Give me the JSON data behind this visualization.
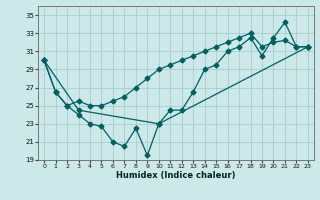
{
  "xlabel": "Humidex (Indice chaleur)",
  "bg_color": "#cce8e8",
  "grid_color": "#a8cccc",
  "line_color": "#006060",
  "xlim": [
    -0.5,
    23.5
  ],
  "ylim": [
    19,
    36
  ],
  "yticks": [
    19,
    21,
    23,
    25,
    27,
    29,
    31,
    33,
    35
  ],
  "xticks": [
    0,
    1,
    2,
    3,
    4,
    5,
    6,
    7,
    8,
    9,
    10,
    11,
    12,
    13,
    14,
    15,
    16,
    17,
    18,
    19,
    20,
    21,
    22,
    23
  ],
  "line1_x": [
    0,
    1,
    2,
    3,
    4,
    5,
    6,
    7,
    8,
    9,
    10,
    11,
    12,
    13,
    14,
    15,
    16,
    17,
    18,
    19,
    20,
    21,
    22,
    23
  ],
  "line1_y": [
    30.0,
    26.5,
    25.0,
    24.0,
    23.0,
    22.7,
    21.0,
    20.5,
    22.5,
    19.5,
    23.0,
    24.5,
    24.5,
    26.5,
    29.0,
    29.5,
    31.0,
    31.5,
    32.5,
    30.5,
    32.5,
    34.2,
    31.5,
    31.5
  ],
  "line2_x": [
    0,
    1,
    2,
    3,
    4,
    5,
    6,
    7,
    8,
    9,
    10,
    11,
    12,
    13,
    14,
    15,
    16,
    17,
    18,
    19,
    20,
    21,
    22,
    23
  ],
  "line2_y": [
    30.0,
    26.5,
    25.0,
    25.5,
    25.0,
    25.0,
    25.5,
    26.0,
    27.0,
    28.0,
    29.0,
    29.5,
    30.0,
    30.5,
    31.0,
    31.5,
    32.0,
    32.5,
    33.0,
    31.5,
    32.0,
    32.2,
    31.5,
    31.5
  ],
  "line3_x": [
    0,
    3,
    10,
    23
  ],
  "line3_y": [
    30.0,
    24.5,
    23.0,
    31.5
  ]
}
